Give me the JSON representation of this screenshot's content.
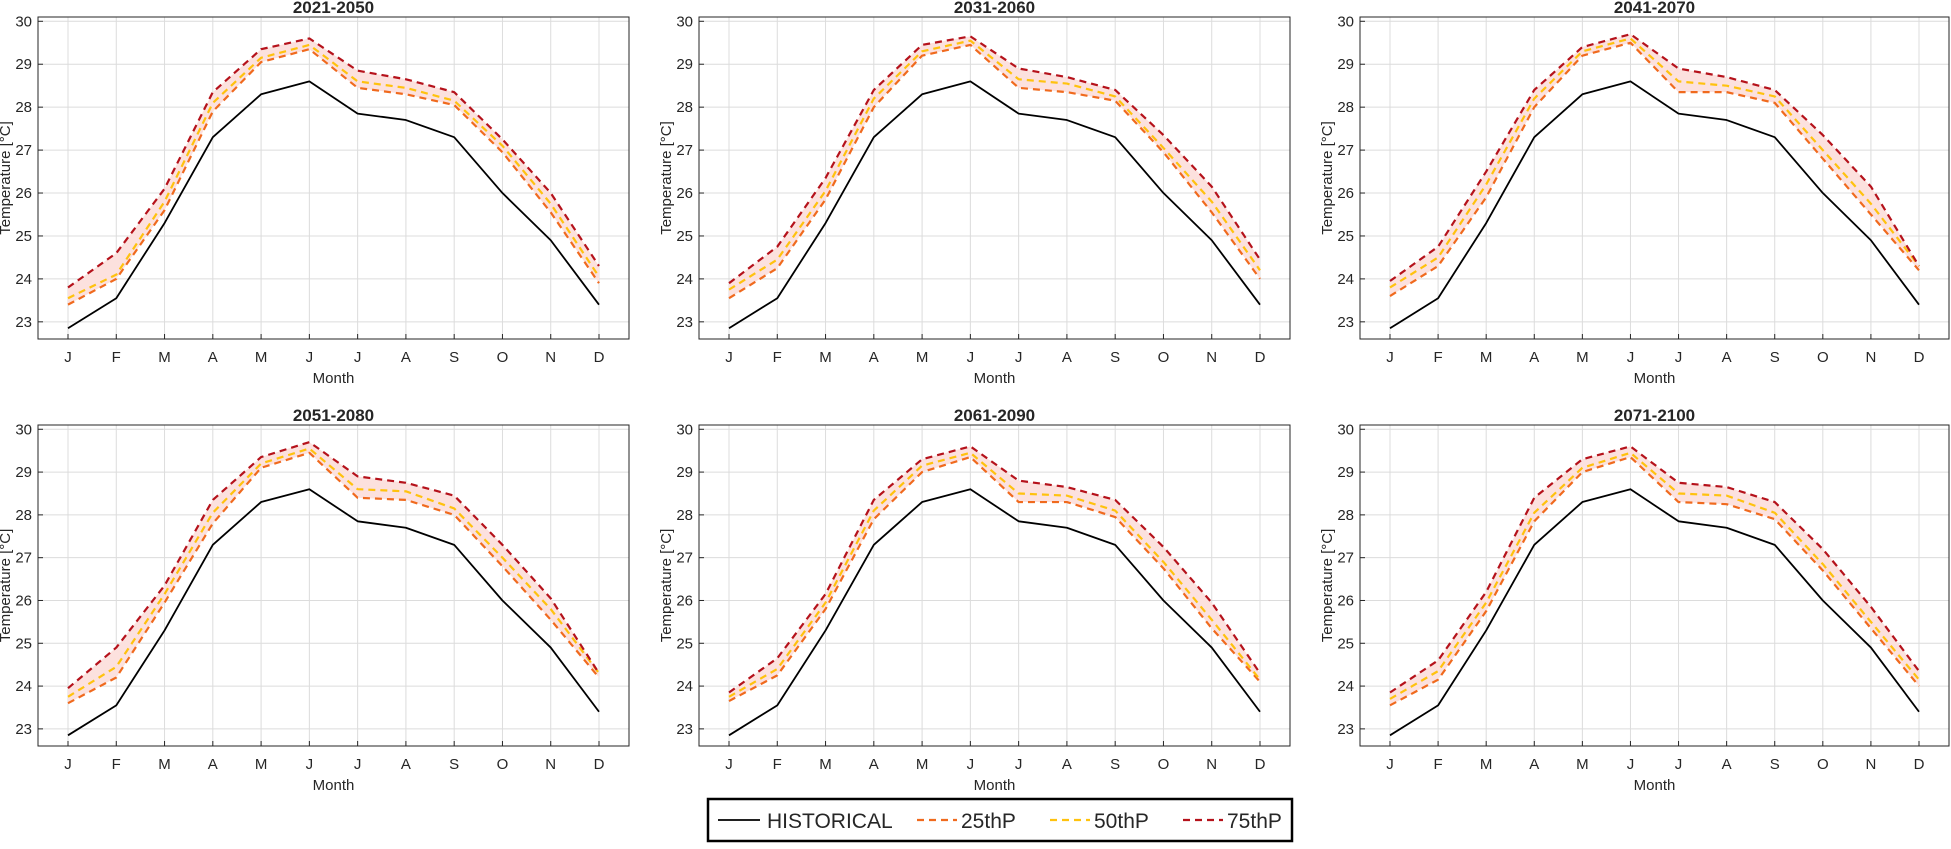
{
  "chart_data": [
    {
      "type": "line",
      "title": "2021-2050",
      "xlabel": "Month",
      "ylabel": "Temperature [°C]",
      "categories": [
        "J",
        "F",
        "M",
        "A",
        "M",
        "J",
        "J",
        "A",
        "S",
        "O",
        "N",
        "D"
      ],
      "ylim": [
        22.6,
        30.1
      ],
      "yticks": [
        23,
        24,
        25,
        26,
        27,
        28,
        29,
        30
      ],
      "grid": true,
      "shaded_band": [
        "25thP",
        "75thP"
      ],
      "series": [
        {
          "name": "HISTORICAL",
          "values": [
            22.85,
            23.55,
            25.3,
            27.3,
            28.3,
            28.6,
            27.85,
            27.7,
            27.3,
            26.0,
            24.9,
            23.4
          ]
        },
        {
          "name": "25thP",
          "values": [
            23.4,
            24.0,
            25.6,
            27.9,
            29.05,
            29.35,
            28.45,
            28.3,
            28.05,
            26.95,
            25.55,
            23.9
          ]
        },
        {
          "name": "50thP",
          "values": [
            23.55,
            24.1,
            25.8,
            28.1,
            29.15,
            29.45,
            28.6,
            28.45,
            28.15,
            27.1,
            25.75,
            24.05
          ]
        },
        {
          "name": "75thP",
          "values": [
            23.8,
            24.6,
            26.1,
            28.35,
            29.35,
            29.6,
            28.85,
            28.65,
            28.35,
            27.25,
            26.0,
            24.3
          ]
        }
      ]
    },
    {
      "type": "line",
      "title": "2031-2060",
      "xlabel": "Month",
      "ylabel": "Temperature [°C]",
      "categories": [
        "J",
        "F",
        "M",
        "A",
        "M",
        "J",
        "J",
        "A",
        "S",
        "O",
        "N",
        "D"
      ],
      "ylim": [
        22.6,
        30.1
      ],
      "yticks": [
        23,
        24,
        25,
        26,
        27,
        28,
        29,
        30
      ],
      "grid": true,
      "shaded_band": [
        "25thP",
        "75thP"
      ],
      "series": [
        {
          "name": "HISTORICAL",
          "values": [
            22.85,
            23.55,
            25.3,
            27.3,
            28.3,
            28.6,
            27.85,
            27.7,
            27.3,
            26.0,
            24.9,
            23.4
          ]
        },
        {
          "name": "25thP",
          "values": [
            23.55,
            24.25,
            25.85,
            28.0,
            29.2,
            29.45,
            28.45,
            28.35,
            28.15,
            26.95,
            25.55,
            24.0
          ]
        },
        {
          "name": "50thP",
          "values": [
            23.75,
            24.45,
            26.05,
            28.2,
            29.3,
            29.55,
            28.65,
            28.55,
            28.25,
            27.05,
            25.8,
            24.2
          ]
        },
        {
          "name": "75thP",
          "values": [
            23.9,
            24.75,
            26.35,
            28.4,
            29.45,
            29.65,
            28.9,
            28.7,
            28.4,
            27.35,
            26.15,
            24.45
          ]
        }
      ]
    },
    {
      "type": "line",
      "title": "2041-2070",
      "xlabel": "Month",
      "ylabel": "Temperature [°C]",
      "categories": [
        "J",
        "F",
        "M",
        "A",
        "M",
        "J",
        "J",
        "A",
        "S",
        "O",
        "N",
        "D"
      ],
      "ylim": [
        22.6,
        30.1
      ],
      "yticks": [
        23,
        24,
        25,
        26,
        27,
        28,
        29,
        30
      ],
      "grid": true,
      "shaded_band": [
        "25thP",
        "75thP"
      ],
      "series": [
        {
          "name": "HISTORICAL",
          "values": [
            22.85,
            23.55,
            25.3,
            27.3,
            28.3,
            28.6,
            27.85,
            27.7,
            27.3,
            26.0,
            24.9,
            23.4
          ]
        },
        {
          "name": "25thP",
          "values": [
            23.6,
            24.3,
            25.9,
            28.0,
            29.2,
            29.5,
            28.35,
            28.35,
            28.1,
            26.8,
            25.5,
            24.2
          ]
        },
        {
          "name": "50thP",
          "values": [
            23.8,
            24.5,
            26.2,
            28.2,
            29.3,
            29.6,
            28.6,
            28.5,
            28.25,
            27.0,
            25.75,
            24.3
          ]
        },
        {
          "name": "75thP",
          "values": [
            23.95,
            24.75,
            26.5,
            28.4,
            29.4,
            29.7,
            28.9,
            28.7,
            28.4,
            27.35,
            26.15,
            24.3
          ]
        }
      ]
    },
    {
      "type": "line",
      "title": "2051-2080",
      "xlabel": "Month",
      "ylabel": "Temperature [°C]",
      "categories": [
        "J",
        "F",
        "M",
        "A",
        "M",
        "J",
        "J",
        "A",
        "S",
        "O",
        "N",
        "D"
      ],
      "ylim": [
        22.6,
        30.1
      ],
      "yticks": [
        23,
        24,
        25,
        26,
        27,
        28,
        29,
        30
      ],
      "grid": true,
      "shaded_band": [
        "25thP",
        "75thP"
      ],
      "series": [
        {
          "name": "HISTORICAL",
          "values": [
            22.85,
            23.55,
            25.3,
            27.3,
            28.3,
            28.6,
            27.85,
            27.7,
            27.3,
            26.0,
            24.9,
            23.4
          ]
        },
        {
          "name": "25thP",
          "values": [
            23.6,
            24.2,
            25.95,
            27.8,
            29.1,
            29.45,
            28.4,
            28.35,
            28.0,
            26.8,
            25.55,
            24.2
          ]
        },
        {
          "name": "50thP",
          "values": [
            23.75,
            24.45,
            26.15,
            28.05,
            29.2,
            29.55,
            28.6,
            28.55,
            28.15,
            27.0,
            25.8,
            24.3
          ]
        },
        {
          "name": "75thP",
          "values": [
            23.95,
            24.9,
            26.35,
            28.35,
            29.35,
            29.7,
            28.9,
            28.75,
            28.45,
            27.3,
            26.05,
            24.3
          ]
        }
      ]
    },
    {
      "type": "line",
      "title": "2061-2090",
      "xlabel": "Month",
      "ylabel": "Temperature [°C]",
      "categories": [
        "J",
        "F",
        "M",
        "A",
        "M",
        "J",
        "J",
        "A",
        "S",
        "O",
        "N",
        "D"
      ],
      "ylim": [
        22.6,
        30.1
      ],
      "yticks": [
        23,
        24,
        25,
        26,
        27,
        28,
        29,
        30
      ],
      "grid": true,
      "shaded_band": [
        "25thP",
        "75thP"
      ],
      "series": [
        {
          "name": "HISTORICAL",
          "values": [
            22.85,
            23.55,
            25.3,
            27.3,
            28.3,
            28.6,
            27.85,
            27.7,
            27.3,
            26.0,
            24.9,
            23.4
          ]
        },
        {
          "name": "25thP",
          "values": [
            23.65,
            24.25,
            25.8,
            27.9,
            29.0,
            29.35,
            28.3,
            28.3,
            27.95,
            26.75,
            25.35,
            24.1
          ]
        },
        {
          "name": "50thP",
          "values": [
            23.75,
            24.4,
            25.95,
            28.1,
            29.15,
            29.45,
            28.5,
            28.45,
            28.1,
            26.9,
            25.55,
            24.15
          ]
        },
        {
          "name": "75thP",
          "values": [
            23.85,
            24.65,
            26.15,
            28.35,
            29.3,
            29.6,
            28.8,
            28.65,
            28.35,
            27.25,
            25.95,
            24.3
          ]
        }
      ]
    },
    {
      "type": "line",
      "title": "2071-2100",
      "xlabel": "Month",
      "ylabel": "Temperature [°C]",
      "categories": [
        "J",
        "F",
        "M",
        "A",
        "M",
        "J",
        "J",
        "A",
        "S",
        "O",
        "N",
        "D"
      ],
      "ylim": [
        22.6,
        30.1
      ],
      "yticks": [
        23,
        24,
        25,
        26,
        27,
        28,
        29,
        30
      ],
      "grid": true,
      "shaded_band": [
        "25thP",
        "75thP"
      ],
      "series": [
        {
          "name": "HISTORICAL",
          "values": [
            22.85,
            23.55,
            25.3,
            27.3,
            28.3,
            28.6,
            27.85,
            27.7,
            27.3,
            26.0,
            24.9,
            23.4
          ]
        },
        {
          "name": "25thP",
          "values": [
            23.55,
            24.15,
            25.75,
            27.85,
            29.0,
            29.35,
            28.3,
            28.25,
            27.9,
            26.7,
            25.35,
            24.0
          ]
        },
        {
          "name": "50thP",
          "values": [
            23.7,
            24.35,
            25.95,
            28.05,
            29.1,
            29.45,
            28.5,
            28.45,
            28.05,
            26.85,
            25.5,
            24.15
          ]
        },
        {
          "name": "75thP",
          "values": [
            23.85,
            24.6,
            26.2,
            28.4,
            29.3,
            29.6,
            28.75,
            28.65,
            28.3,
            27.2,
            25.85,
            24.35
          ]
        }
      ]
    }
  ],
  "legend": {
    "placement": "bottom-center",
    "entries": [
      {
        "label": "HISTORICAL",
        "color": "#000000",
        "style": "solid"
      },
      {
        "label": "25thP",
        "color": "#F06A1E",
        "style": "dashed"
      },
      {
        "label": "50thP",
        "color": "#FFC20E",
        "style": "dashed"
      },
      {
        "label": "75thP",
        "color": "#B5121B",
        "style": "dashed"
      }
    ]
  },
  "colors": {
    "HISTORICAL": "#000000",
    "25thP": "#F06A1E",
    "50thP": "#FFC20E",
    "75thP": "#B5121B",
    "band_fill": "#FCE1DE",
    "grid": "#DCDCDC",
    "axis": "#262626"
  }
}
